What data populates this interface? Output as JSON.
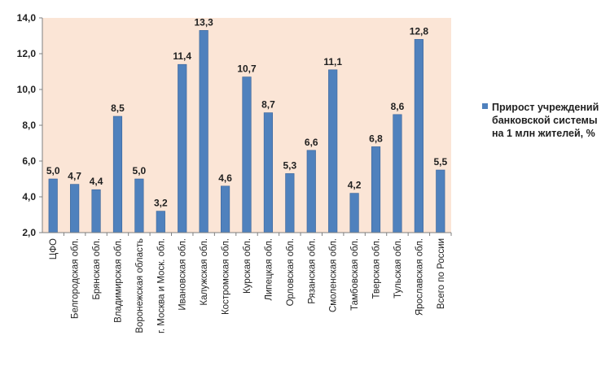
{
  "chart_data": {
    "type": "bar",
    "title": "",
    "xlabel": "",
    "ylabel": "",
    "ylim": [
      2.0,
      14.0
    ],
    "ytick_step": 2.0,
    "ytick_labels": [
      "2,0",
      "4,0",
      "6,0",
      "8,0",
      "10,0",
      "12,0",
      "14,0"
    ],
    "categories": [
      "ЦФО",
      "Белгородская обл.",
      "Брянская обл.",
      "Владимирская обл.",
      "Воронежская область",
      "г. Москва и Моск. обл.",
      "Ивановская обл.",
      "Калужская обл.",
      "Костромская обл.",
      "Курская обл.",
      "Липецкая обл.",
      "Орловская обл.",
      "Рязанская обл.",
      "Смоленская обл.",
      "Тамбовская обл.",
      "Тверская обл.",
      "Тульская обл.",
      "Ярославская обл.",
      "Всего по России"
    ],
    "values": [
      5.0,
      4.7,
      4.4,
      8.5,
      5.0,
      3.2,
      11.4,
      13.3,
      4.6,
      10.7,
      8.7,
      5.3,
      6.6,
      11.1,
      4.2,
      6.8,
      8.6,
      12.8,
      5.5
    ],
    "value_labels": [
      "5,0",
      "4,7",
      "4,4",
      "8,5",
      "5,0",
      "3,2",
      "11,4",
      "13,3",
      "4,6",
      "10,7",
      "8,7",
      "5,3",
      "6,6",
      "11,1",
      "4,2",
      "6,8",
      "8,6",
      "12,8",
      "5,5"
    ],
    "series": [
      {
        "name": "Прирост учреждений банковской системы на 1 млн  жителей, %"
      }
    ],
    "legend_position": "right",
    "colors": {
      "bar": "#4f81bd",
      "bar_edge": "#3a6499",
      "plot_bg": "#fbe5d6",
      "axis": "#7f7f7f"
    }
  }
}
